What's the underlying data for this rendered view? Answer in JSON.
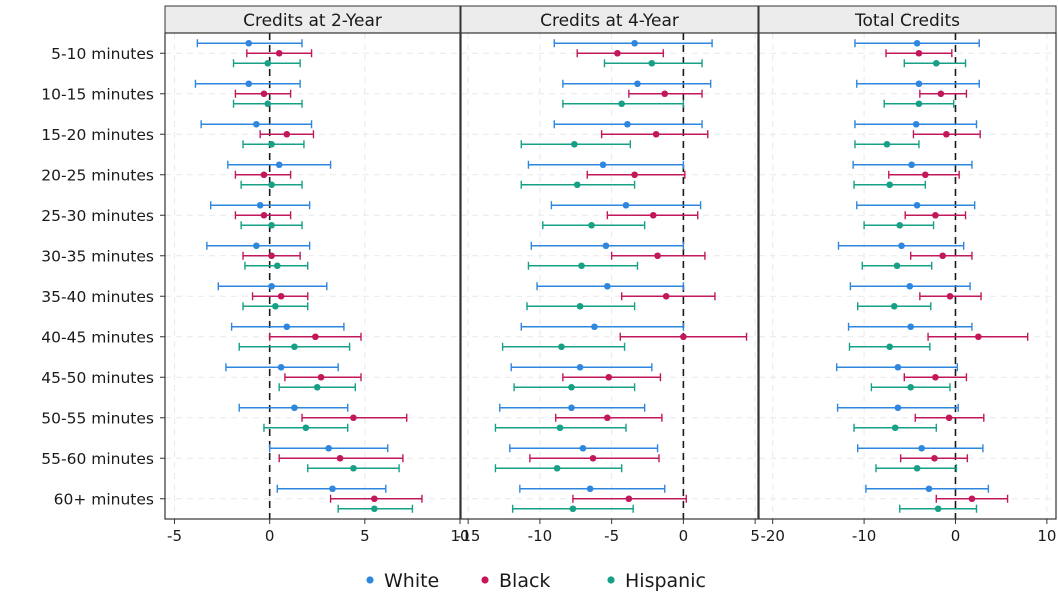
{
  "chart_data": {
    "type": "dot-whisker",
    "categories": [
      "5-10 minutes",
      "10-15 minutes",
      "15-20 minutes",
      "20-25 minutes",
      "25-30 minutes",
      "30-35 minutes",
      "35-40 minutes",
      "40-45 minutes",
      "45-50 minutes",
      "50-55 minutes",
      "55-60 minutes",
      "60+ minutes"
    ],
    "legend": {
      "position": "bottom",
      "items": [
        {
          "name": "White",
          "color": "#2e86de"
        },
        {
          "name": "Black",
          "color": "#c2185b"
        },
        {
          "name": "Hispanic",
          "color": "#16a085"
        }
      ]
    },
    "grid": true,
    "panels": [
      {
        "title": "Credits at 2-Year",
        "xlim": [
          -5.5,
          10
        ],
        "ticks": [
          -5,
          0,
          5,
          10
        ],
        "tick_labels": [
          "-5",
          "0",
          "5",
          "10"
        ],
        "series": [
          {
            "name": "White",
            "est": [
              -1.1,
              -1.1,
              -0.7,
              0.5,
              -0.5,
              -0.7,
              0.1,
              0.9,
              0.6,
              1.3,
              3.1,
              3.3
            ],
            "lo": [
              -3.8,
              -3.9,
              -3.6,
              -2.2,
              -3.1,
              -3.3,
              -2.7,
              -2.0,
              -2.3,
              -1.6,
              0.0,
              0.4
            ],
            "hi": [
              1.7,
              1.6,
              2.2,
              3.2,
              2.1,
              2.1,
              3.0,
              3.9,
              3.6,
              4.1,
              6.2,
              6.1
            ]
          },
          {
            "name": "Black",
            "est": [
              0.5,
              -0.3,
              0.9,
              -0.3,
              -0.3,
              0.1,
              0.6,
              2.4,
              2.7,
              4.4,
              3.7,
              5.5
            ],
            "lo": [
              -1.2,
              -1.8,
              -0.5,
              -1.8,
              -1.8,
              -1.4,
              -0.9,
              0.0,
              0.8,
              1.7,
              0.5,
              3.2
            ],
            "hi": [
              2.2,
              1.1,
              2.3,
              1.1,
              1.1,
              1.6,
              2.0,
              4.8,
              4.8,
              7.2,
              7.0,
              8.0
            ]
          },
          {
            "name": "Hispanic",
            "est": [
              -0.1,
              -0.1,
              0.1,
              0.1,
              0.1,
              0.4,
              0.3,
              1.3,
              2.5,
              1.9,
              4.4,
              5.5
            ],
            "lo": [
              -1.9,
              -1.9,
              -1.4,
              -1.5,
              -1.5,
              -1.3,
              -1.4,
              -1.6,
              0.5,
              -0.3,
              2.0,
              3.6
            ],
            "hi": [
              1.6,
              1.7,
              1.8,
              1.7,
              1.7,
              2.0,
              2.0,
              4.2,
              4.5,
              4.1,
              6.8,
              7.5
            ]
          }
        ]
      },
      {
        "title": "Credits at 4-Year",
        "xlim": [
          -15.5,
          5.2
        ],
        "ticks": [
          -15,
          -10,
          -5,
          0,
          5
        ],
        "tick_labels": [
          "-15",
          "-10",
          "-5",
          "0",
          "5"
        ],
        "series": [
          {
            "name": "White",
            "est": [
              -3.4,
              -3.2,
              -3.9,
              -5.6,
              -4.0,
              -5.4,
              -5.3,
              -6.2,
              -7.2,
              -7.8,
              -7.0,
              -6.5
            ],
            "lo": [
              -9.0,
              -8.4,
              -9.0,
              -10.8,
              -9.2,
              -10.6,
              -10.2,
              -11.3,
              -12.0,
              -12.8,
              -12.1,
              -11.4
            ],
            "hi": [
              2.0,
              1.9,
              1.3,
              0.0,
              1.2,
              0.0,
              0.0,
              0.0,
              -2.2,
              -2.7,
              -1.8,
              -1.3
            ]
          },
          {
            "name": "Black",
            "est": [
              -4.6,
              -1.3,
              -1.9,
              -3.4,
              -2.1,
              -1.8,
              -1.2,
              0.0,
              -5.2,
              -5.3,
              -6.3,
              -3.8
            ],
            "lo": [
              -7.4,
              -3.8,
              -5.7,
              -6.7,
              -5.3,
              -5.0,
              -4.3,
              -4.4,
              -8.4,
              -8.9,
              -10.7,
              -7.7
            ],
            "hi": [
              -1.4,
              1.3,
              1.7,
              0.1,
              1.0,
              1.5,
              2.2,
              4.4,
              -1.6,
              -1.5,
              -1.7,
              0.2
            ]
          },
          {
            "name": "Hispanic",
            "est": [
              -2.2,
              -4.3,
              -7.6,
              -7.4,
              -6.4,
              -7.1,
              -7.2,
              -8.5,
              -7.8,
              -8.6,
              -8.8,
              -7.7
            ],
            "lo": [
              -5.5,
              -8.4,
              -11.3,
              -11.3,
              -9.8,
              -10.8,
              -10.9,
              -12.6,
              -11.8,
              -13.1,
              -13.1,
              -11.9
            ],
            "hi": [
              1.3,
              0.0,
              -3.7,
              -3.4,
              -2.7,
              -3.2,
              -3.4,
              -4.1,
              -3.4,
              -4.0,
              -4.3,
              -3.5
            ]
          }
        ]
      },
      {
        "title": "Total Credits",
        "xlim": [
          -21.5,
          11
        ],
        "ticks": [
          -20,
          -10,
          0,
          10
        ],
        "tick_labels": [
          "-20",
          "-10",
          "0",
          "10"
        ],
        "series": [
          {
            "name": "White",
            "est": [
              -4.2,
              -4.0,
              -4.3,
              -4.8,
              -4.2,
              -5.9,
              -5.0,
              -4.9,
              -6.3,
              -6.3,
              -3.7,
              -2.9
            ],
            "lo": [
              -11.0,
              -10.8,
              -11.0,
              -11.2,
              -10.8,
              -12.8,
              -11.5,
              -11.7,
              -13.0,
              -12.9,
              -10.7,
              -9.8
            ],
            "hi": [
              2.6,
              2.6,
              2.3,
              1.8,
              2.1,
              0.9,
              1.6,
              1.8,
              0.2,
              0.3,
              3.0,
              3.6
            ]
          },
          {
            "name": "Black",
            "est": [
              -4.0,
              -1.6,
              -1.0,
              -3.3,
              -2.2,
              -1.4,
              -0.6,
              2.5,
              -2.2,
              -0.7,
              -2.3,
              1.8
            ],
            "lo": [
              -7.6,
              -3.9,
              -4.6,
              -7.3,
              -5.5,
              -4.9,
              -3.9,
              -3.0,
              -5.6,
              -4.4,
              -6.0,
              -2.1
            ],
            "hi": [
              -0.4,
              1.2,
              2.7,
              0.4,
              1.1,
              1.8,
              2.8,
              7.9,
              1.2,
              3.1,
              1.3,
              5.7
            ]
          },
          {
            "name": "Hispanic",
            "est": [
              -2.1,
              -4.0,
              -7.5,
              -7.2,
              -6.1,
              -6.4,
              -6.7,
              -7.2,
              -4.9,
              -6.6,
              -4.2,
              -1.9
            ],
            "lo": [
              -5.6,
              -7.8,
              -11.0,
              -11.1,
              -10.0,
              -10.2,
              -10.7,
              -11.6,
              -9.2,
              -11.1,
              -8.7,
              -6.1
            ],
            "hi": [
              1.1,
              -0.2,
              -4.0,
              -3.3,
              -2.4,
              -2.6,
              -2.7,
              -2.8,
              -0.6,
              -2.1,
              0.1,
              2.3
            ]
          }
        ]
      }
    ]
  }
}
